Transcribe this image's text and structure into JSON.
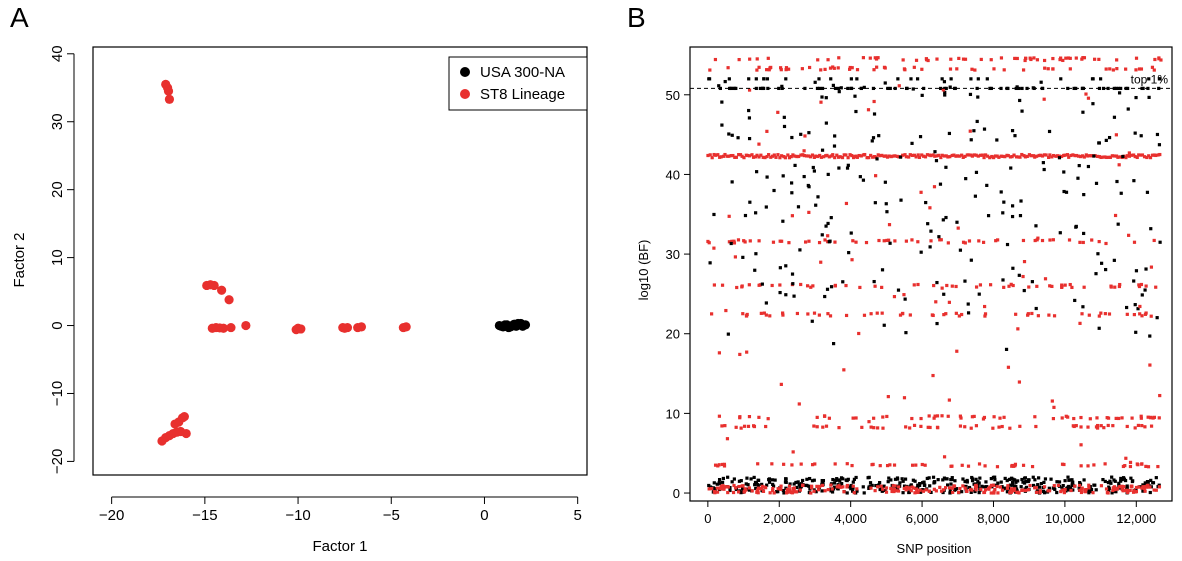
{
  "panels": {
    "a_letter": "A",
    "b_letter": "B"
  },
  "chart_data": [
    {
      "type": "scatter",
      "panel": "A",
      "xlabel": "Factor 1",
      "ylabel": "Factor 2",
      "xlim": [
        -21,
        5.5
      ],
      "ylim": [
        -22,
        41
      ],
      "xticks": [
        -20,
        -15,
        -10,
        -5,
        0,
        5
      ],
      "yticks": [
        -20,
        -10,
        0,
        10,
        20,
        30,
        40
      ],
      "xtick_labels": [
        "−20",
        "−15",
        "−10",
        "−5",
        "0",
        "5"
      ],
      "ytick_labels": [
        "−20",
        "−10",
        "0",
        "10",
        "20",
        "30",
        "40"
      ],
      "legend": {
        "position": "top-right",
        "entries": [
          "USA 300-NA",
          "ST8 Lineage"
        ]
      },
      "series": [
        {
          "name": "USA 300-NA",
          "color": "#000000",
          "x": [
            0.8,
            1.0,
            1.2,
            1.3,
            1.5,
            1.6,
            1.7,
            1.8,
            1.9,
            2.0,
            2.1,
            2.2,
            1.4,
            1.1,
            0.9,
            1.75,
            1.95,
            2.05,
            1.55,
            1.25
          ],
          "y": [
            0.0,
            -0.2,
            0.1,
            -0.3,
            0.0,
            0.2,
            -0.1,
            0.3,
            0.1,
            0.2,
            0.0,
            0.1,
            -0.2,
            0.1,
            -0.1,
            0.0,
            0.3,
            -0.1,
            0.1,
            -0.2
          ]
        },
        {
          "name": "ST8 Lineage",
          "color": "#e8302e",
          "x": [
            -17.1,
            -17.0,
            -16.95,
            -16.9,
            -14.9,
            -14.7,
            -14.5,
            -14.1,
            -13.7,
            -14.6,
            -14.4,
            -14.2,
            -14.0,
            -13.6,
            -12.8,
            -10.1,
            -10.0,
            -9.85,
            -7.6,
            -7.5,
            -7.35,
            -6.8,
            -6.6,
            -4.35,
            -4.2,
            -17.3,
            -17.1,
            -16.9,
            -16.7,
            -16.5,
            -16.3,
            -16.6,
            -16.4,
            -16.2,
            -16.1,
            -16.0
          ],
          "y": [
            35.5,
            35.0,
            34.5,
            33.3,
            5.9,
            6.0,
            5.9,
            5.2,
            3.8,
            -0.4,
            -0.3,
            -0.35,
            -0.4,
            -0.3,
            0.0,
            -0.6,
            -0.4,
            -0.5,
            -0.3,
            -0.4,
            -0.3,
            -0.3,
            -0.2,
            -0.3,
            -0.2,
            -17.0,
            -16.5,
            -16.2,
            -15.9,
            -15.7,
            -15.6,
            -14.5,
            -14.2,
            -13.6,
            -13.4,
            -15.9
          ]
        }
      ]
    },
    {
      "type": "scatter",
      "panel": "B",
      "xlabel": "SNP position",
      "ylabel": "log10 (BF)",
      "xlim": [
        -500,
        13000
      ],
      "ylim": [
        -1,
        56
      ],
      "xticks": [
        0,
        2000,
        4000,
        6000,
        8000,
        10000,
        12000
      ],
      "yticks": [
        0,
        10,
        20,
        30,
        40,
        50
      ],
      "xtick_labels": [
        "0",
        "2,000",
        "4,000",
        "6,000",
        "8,000",
        "10,000",
        "12,000"
      ],
      "ytick_labels": [
        "0",
        "10",
        "20",
        "30",
        "40",
        "50"
      ],
      "threshold": {
        "y": 50.8,
        "label": "top 1%",
        "style": "dashed"
      },
      "point_count": 12800,
      "series": [
        {
          "name": "black",
          "color": "#000000",
          "levels": [
            50.8,
            47,
            45,
            42.5,
            32.5,
            31,
            27,
            0.5
          ],
          "baseline_max": 2
        },
        {
          "name": "red",
          "color": "#e8302e",
          "levels": [
            54.5,
            53.3,
            42.3,
            31.6,
            26,
            22.4,
            9.5,
            8.3,
            3.5,
            0.3
          ],
          "baseline_max": 1
        }
      ]
    }
  ]
}
